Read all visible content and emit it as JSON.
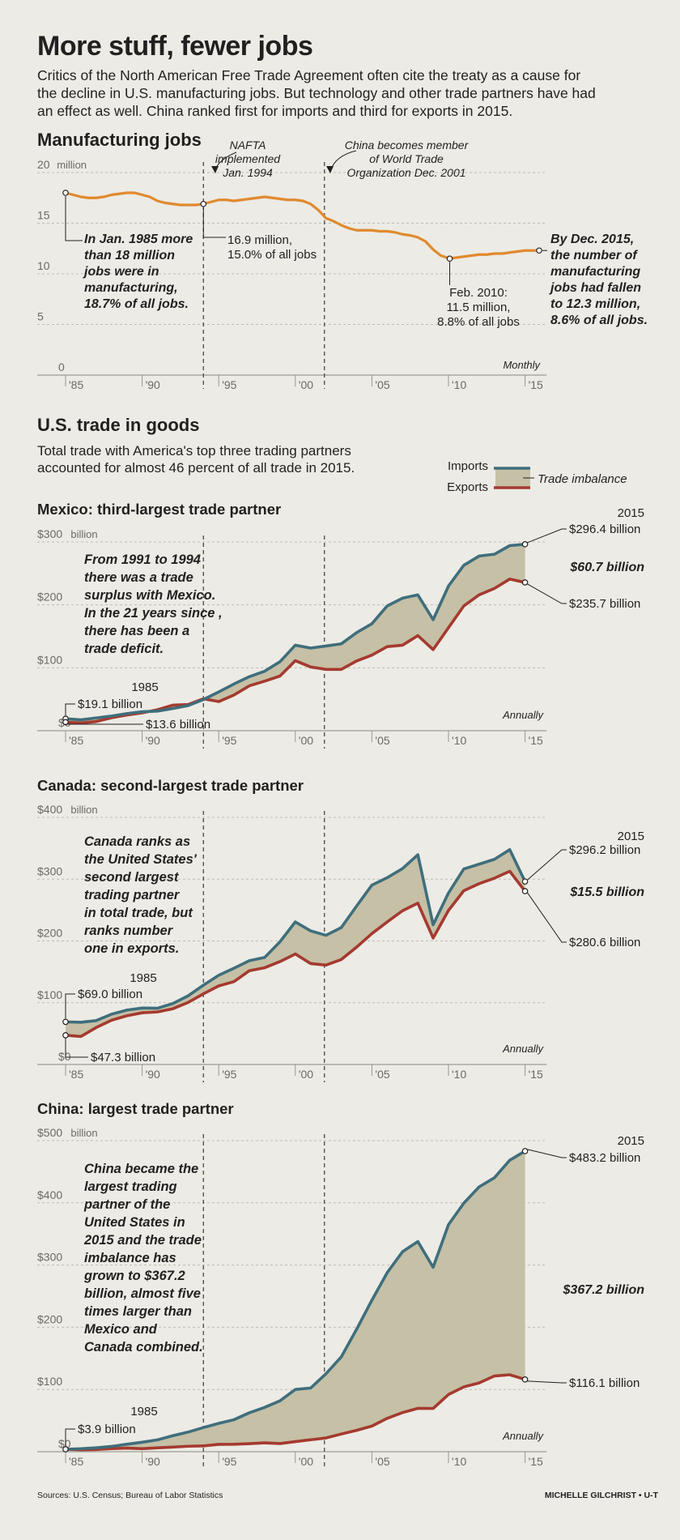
{
  "header": {
    "title": "More stuff, fewer jobs",
    "intro": "Critics of the North American Free Trade Agreement often cite the treaty as a cause for the decline in U.S. manufacturing jobs. But technology and other trade partners have had an effect as well. China ranked first for imports and third for exports in 2015."
  },
  "events": {
    "nafta": [
      "NAFTA",
      "implemented",
      "Jan. 1994"
    ],
    "wto": [
      "China becomes member",
      "of World Trade",
      "Organization Dec. 2001"
    ]
  },
  "x_ticks": [
    "'85",
    "'90",
    "'95",
    "'00",
    "'05",
    "'10",
    "'15"
  ],
  "manufacturing": {
    "title": "Manufacturing jobs",
    "y_unit": "million",
    "frequency": "Monthly",
    "start_note": [
      "In Jan. 1985 more",
      "than 18 million",
      "jobs were in",
      "manufacturing,",
      "18.7% of all jobs."
    ],
    "nafta_note": [
      "16.9 million,",
      "15.0% of all jobs"
    ],
    "low_note": [
      "Feb. 2010:",
      "11.5 million,",
      "8.8% of all jobs"
    ],
    "end_note": [
      "By Dec. 2015,",
      "the number of",
      "manufacturing",
      "jobs had fallen",
      "to 12.3 million,",
      "8.6% of all jobs."
    ],
    "colors": {
      "line": "#e08a2e"
    }
  },
  "trade": {
    "title": "U.S. trade in goods",
    "subtitle": "Total trade with America's top three trading partners accounted for almost 46 percent of all trade in 2015.",
    "legend": {
      "imports": "Imports",
      "exports": "Exports",
      "imbalance": "Trade imbalance"
    },
    "frequency": "Annually",
    "colors": {
      "imports": "#3f6e7c",
      "exports": "#a53a2f",
      "fill": "#c5c0a6"
    }
  },
  "mexico": {
    "title": "Mexico: third-largest trade partner",
    "y_unit": "billion",
    "note": [
      "From 1991 to 1994",
      "there was a trade",
      "surplus with Mexico.",
      "In the 21 years since ,",
      "there has been a",
      "trade deficit."
    ],
    "start_year": "1985",
    "start_imports": "$19.1 billion",
    "start_exports": "$13.6 billion",
    "end_year": "2015",
    "end_imports": "$296.4 billion",
    "end_gap": "$60.7 billion",
    "end_exports": "$235.7 billion"
  },
  "canada": {
    "title": "Canada: second-largest trade partner",
    "y_unit": "billion",
    "note": [
      "Canada ranks as",
      "the United States'",
      "second largest",
      "trading partner",
      "in total trade, but",
      "ranks number",
      "one in exports."
    ],
    "start_year": "1985",
    "start_imports": "$69.0 billion",
    "start_exports": "$47.3 billion",
    "end_year": "2015",
    "end_imports": "$296.2 billion",
    "end_gap": "$15.5 billion",
    "end_exports": "$280.6 billion"
  },
  "china": {
    "title": "China: largest trade partner",
    "y_unit": "billion",
    "note": [
      "China became the",
      "largest trading",
      "partner of the",
      "United States in",
      "2015 and the trade",
      "imbalance has",
      "grown to $367.2",
      "billion, almost five",
      "times larger than",
      "Mexico and",
      "Canada combined."
    ],
    "start_year": "1985",
    "start_imports": "$3.9 billion",
    "end_year": "2015",
    "end_imports": "$483.2 billion",
    "end_gap": "$367.2 billion",
    "end_exports": "$116.1 billion"
  },
  "footer": {
    "sources": "Sources: U.S. Census; Bureau of Labor Statistics",
    "credit": "MICHELLE GILCHRIST • U-T"
  },
  "chart_data": [
    {
      "type": "line",
      "title": "Manufacturing jobs",
      "ylabel": "million",
      "ylim": [
        0,
        20
      ],
      "yticks": [
        0,
        5,
        10,
        15,
        20
      ],
      "x_unit": "decimal year (monthly series)",
      "series": [
        {
          "name": "",
          "x": [
            1985.0,
            1985.5,
            1986.0,
            1986.5,
            1987.0,
            1987.5,
            1988.0,
            1988.5,
            1989.0,
            1989.5,
            1990.0,
            1990.5,
            1991.0,
            1991.5,
            1992.0,
            1992.5,
            1993.0,
            1993.5,
            1994.0,
            1994.5,
            1995.0,
            1995.5,
            1996.0,
            1996.5,
            1997.0,
            1997.5,
            1998.0,
            1998.5,
            1999.0,
            1999.5,
            2000.0,
            2000.5,
            2001.0,
            2001.5,
            2002.0,
            2002.5,
            2003.0,
            2003.5,
            2004.0,
            2004.5,
            2005.0,
            2005.5,
            2006.0,
            2006.5,
            2007.0,
            2007.5,
            2008.0,
            2008.5,
            2009.0,
            2009.5,
            2010.08,
            2010.5,
            2011.0,
            2011.5,
            2012.0,
            2012.5,
            2013.0,
            2013.5,
            2014.0,
            2014.5,
            2015.0,
            2015.5,
            2015.92
          ],
          "values": [
            18.0,
            17.8,
            17.6,
            17.5,
            17.5,
            17.6,
            17.8,
            17.9,
            18.0,
            18.0,
            17.8,
            17.6,
            17.2,
            17.0,
            16.9,
            16.8,
            16.8,
            16.8,
            16.9,
            17.1,
            17.3,
            17.3,
            17.2,
            17.3,
            17.4,
            17.5,
            17.6,
            17.5,
            17.4,
            17.3,
            17.3,
            17.2,
            16.9,
            16.3,
            15.5,
            15.2,
            14.8,
            14.5,
            14.3,
            14.3,
            14.3,
            14.2,
            14.2,
            14.1,
            13.9,
            13.8,
            13.6,
            13.2,
            12.4,
            11.8,
            11.5,
            11.6,
            11.7,
            11.8,
            11.9,
            11.9,
            12.0,
            12.0,
            12.1,
            12.2,
            12.3,
            12.3,
            12.3
          ]
        }
      ],
      "annotations": [
        {
          "x": 1985.0,
          "y": 18.0
        },
        {
          "x": 1994.0,
          "y": 16.9
        },
        {
          "x": 2010.08,
          "y": 11.5
        },
        {
          "x": 2015.92,
          "y": 12.3
        }
      ]
    },
    {
      "type": "line",
      "title": "Mexico: third-largest trade partner",
      "ylabel": "billion",
      "ylim": [
        0,
        300
      ],
      "yticks": [
        0,
        100,
        200,
        300
      ],
      "x": [
        1985,
        1986,
        1987,
        1988,
        1989,
        1990,
        1991,
        1992,
        1993,
        1994,
        1995,
        1996,
        1997,
        1998,
        1999,
        2000,
        2001,
        2002,
        2003,
        2004,
        2005,
        2006,
        2007,
        2008,
        2009,
        2010,
        2011,
        2012,
        2013,
        2014,
        2015
      ],
      "series": [
        {
          "name": "Imports",
          "values": [
            19.1,
            17.3,
            20.3,
            23.3,
            27.2,
            30.2,
            31.1,
            35.2,
            39.9,
            49.5,
            61.7,
            74.3,
            85.9,
            94.6,
            109.7,
            135.9,
            131.3,
            134.6,
            138.1,
            155.9,
            170.1,
            198.3,
            210.7,
            215.9,
            176.5,
            229.9,
            262.9,
            277.6,
            280.5,
            294.2,
            296.4
          ]
        },
        {
          "name": "Exports",
          "values": [
            13.6,
            12.4,
            14.6,
            20.6,
            25.0,
            28.3,
            33.3,
            40.6,
            41.6,
            50.8,
            46.3,
            56.8,
            71.4,
            78.8,
            86.9,
            111.3,
            101.3,
            97.5,
            97.4,
            110.8,
            120.2,
            133.7,
            135.9,
            151.2,
            128.9,
            163.7,
            198.3,
            215.9,
            226.1,
            241.0,
            235.7
          ]
        }
      ]
    },
    {
      "type": "line",
      "title": "Canada: second-largest trade partner",
      "ylabel": "billion",
      "ylim": [
        0,
        400
      ],
      "yticks": [
        0,
        100,
        200,
        300,
        400
      ],
      "x": [
        1985,
        1986,
        1987,
        1988,
        1989,
        1990,
        1991,
        1992,
        1993,
        1994,
        1995,
        1996,
        1997,
        1998,
        1999,
        2000,
        2001,
        2002,
        2003,
        2004,
        2005,
        2006,
        2007,
        2008,
        2009,
        2010,
        2011,
        2012,
        2013,
        2014,
        2015
      ],
      "series": [
        {
          "name": "Imports",
          "values": [
            69.0,
            68.3,
            71.1,
            81.4,
            88.0,
            91.4,
            91.1,
            98.6,
            111.2,
            128.4,
            144.4,
            155.9,
            168.0,
            173.3,
            198.7,
            230.8,
            216.3,
            209.1,
            221.6,
            256.4,
            290.4,
            302.4,
            317.1,
            339.5,
            226.2,
            277.6,
            316.5,
            324.3,
            332.1,
            347.8,
            296.2
          ]
        },
        {
          "name": "Exports",
          "values": [
            47.3,
            45.3,
            59.8,
            71.6,
            78.8,
            83.7,
            85.1,
            90.2,
            100.4,
            114.4,
            127.2,
            134.2,
            151.8,
            156.6,
            166.6,
            178.9,
            163.4,
            160.9,
            169.9,
            189.9,
            211.9,
            230.7,
            248.9,
            261.1,
            204.7,
            249.3,
            281.3,
            292.7,
            301.6,
            312.8,
            280.6
          ]
        }
      ]
    },
    {
      "type": "line",
      "title": "China: largest trade partner",
      "ylabel": "billion",
      "ylim": [
        0,
        500
      ],
      "yticks": [
        0,
        100,
        200,
        300,
        400,
        500
      ],
      "x": [
        1985,
        1986,
        1987,
        1988,
        1989,
        1990,
        1991,
        1992,
        1993,
        1994,
        1995,
        1996,
        1997,
        1998,
        1999,
        2000,
        2001,
        2002,
        2003,
        2004,
        2005,
        2006,
        2007,
        2008,
        2009,
        2010,
        2011,
        2012,
        2013,
        2014,
        2015
      ],
      "series": [
        {
          "name": "Imports",
          "values": [
            3.9,
            4.8,
            6.3,
            8.5,
            12.0,
            15.2,
            19.0,
            25.7,
            31.5,
            38.8,
            45.6,
            51.5,
            62.6,
            71.2,
            81.8,
            100.0,
            102.3,
            125.2,
            152.4,
            196.7,
            243.5,
            287.8,
            321.4,
            337.8,
            296.4,
            364.9,
            399.4,
            425.6,
            440.4,
            468.5,
            483.2
          ]
        },
        {
          "name": "Exports",
          "values": [
            3.9,
            3.1,
            3.5,
            5.0,
            5.8,
            4.8,
            6.3,
            7.4,
            8.8,
            9.3,
            11.8,
            12.0,
            12.9,
            14.2,
            13.1,
            16.2,
            19.2,
            22.1,
            28.4,
            34.4,
            41.2,
            53.7,
            62.9,
            69.7,
            69.5,
            91.9,
            104.1,
            110.5,
            121.7,
            123.7,
            116.1
          ]
        }
      ]
    }
  ]
}
